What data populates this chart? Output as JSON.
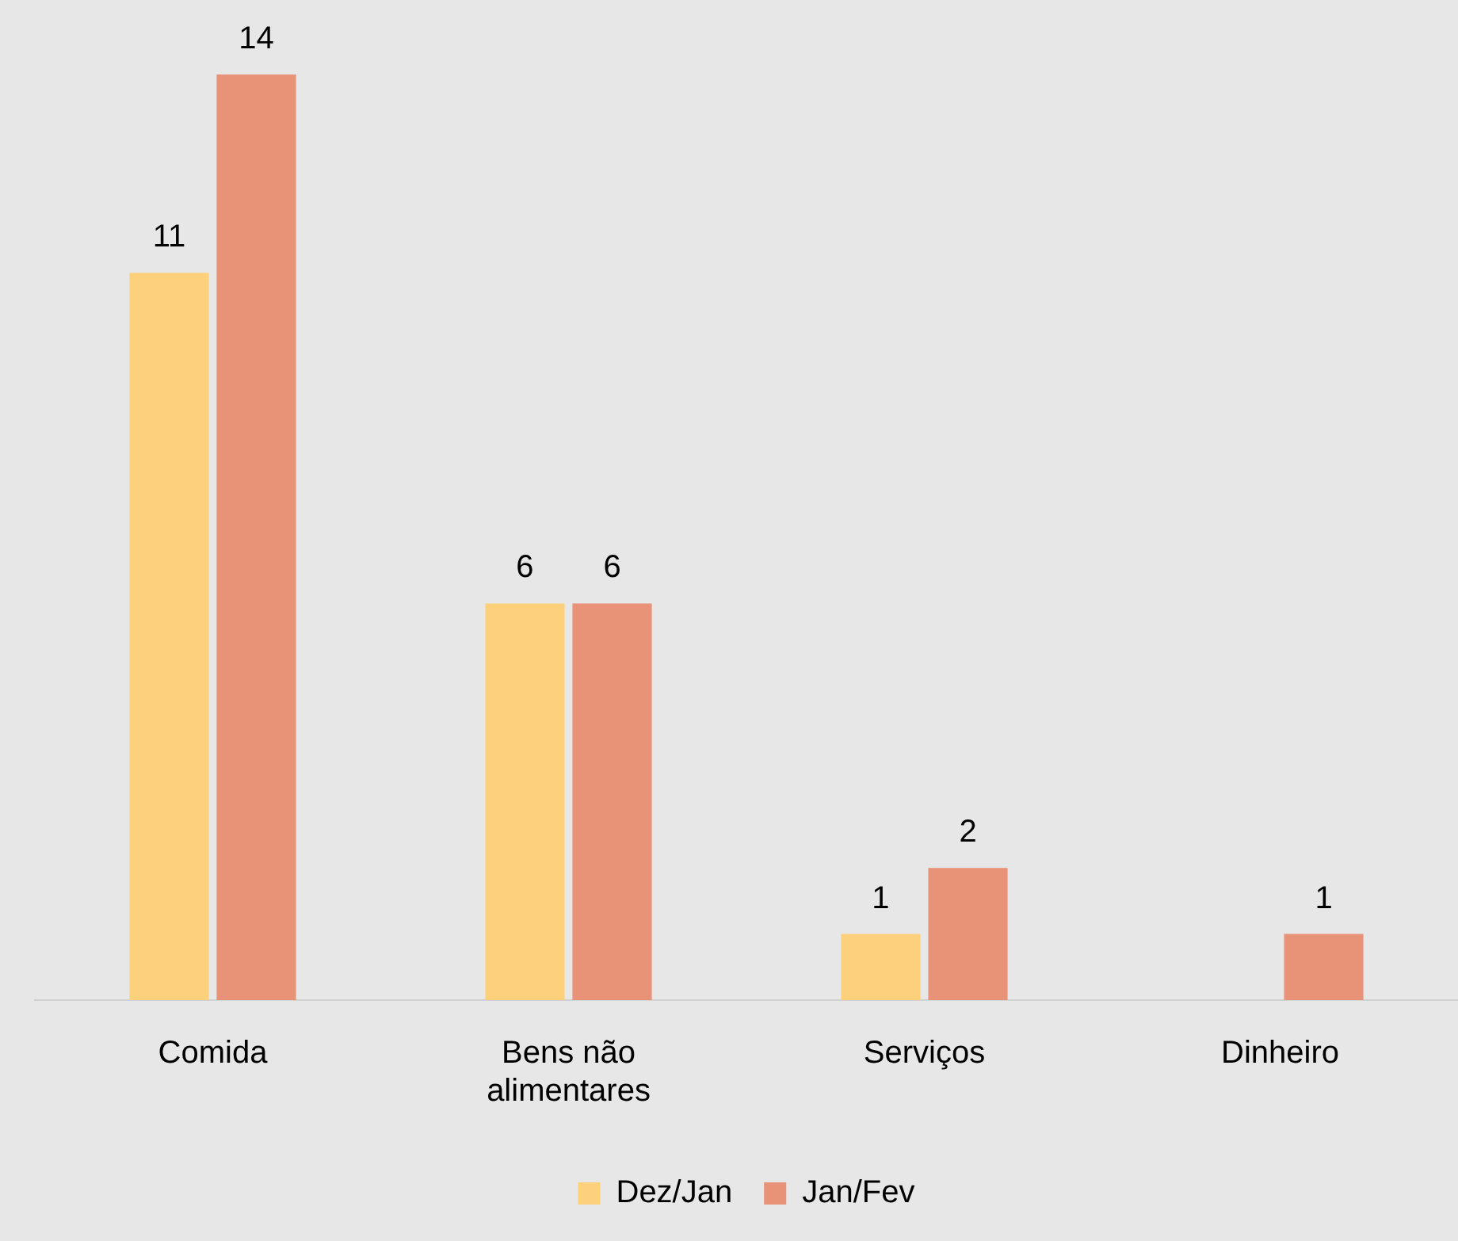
{
  "chart_data": {
    "type": "bar",
    "categories": [
      "Comida",
      "Bens não alimentares",
      "Serviços",
      "Dinheiro"
    ],
    "series": [
      {
        "name": "Dez/Jan",
        "color": "#fdd17c",
        "values": [
          11,
          6,
          1,
          null
        ]
      },
      {
        "name": "Jan/Fev",
        "color": "#e89277",
        "values": [
          14,
          6,
          2,
          1
        ]
      }
    ],
    "data_labels": true,
    "grid": false,
    "legend": "bottom"
  }
}
